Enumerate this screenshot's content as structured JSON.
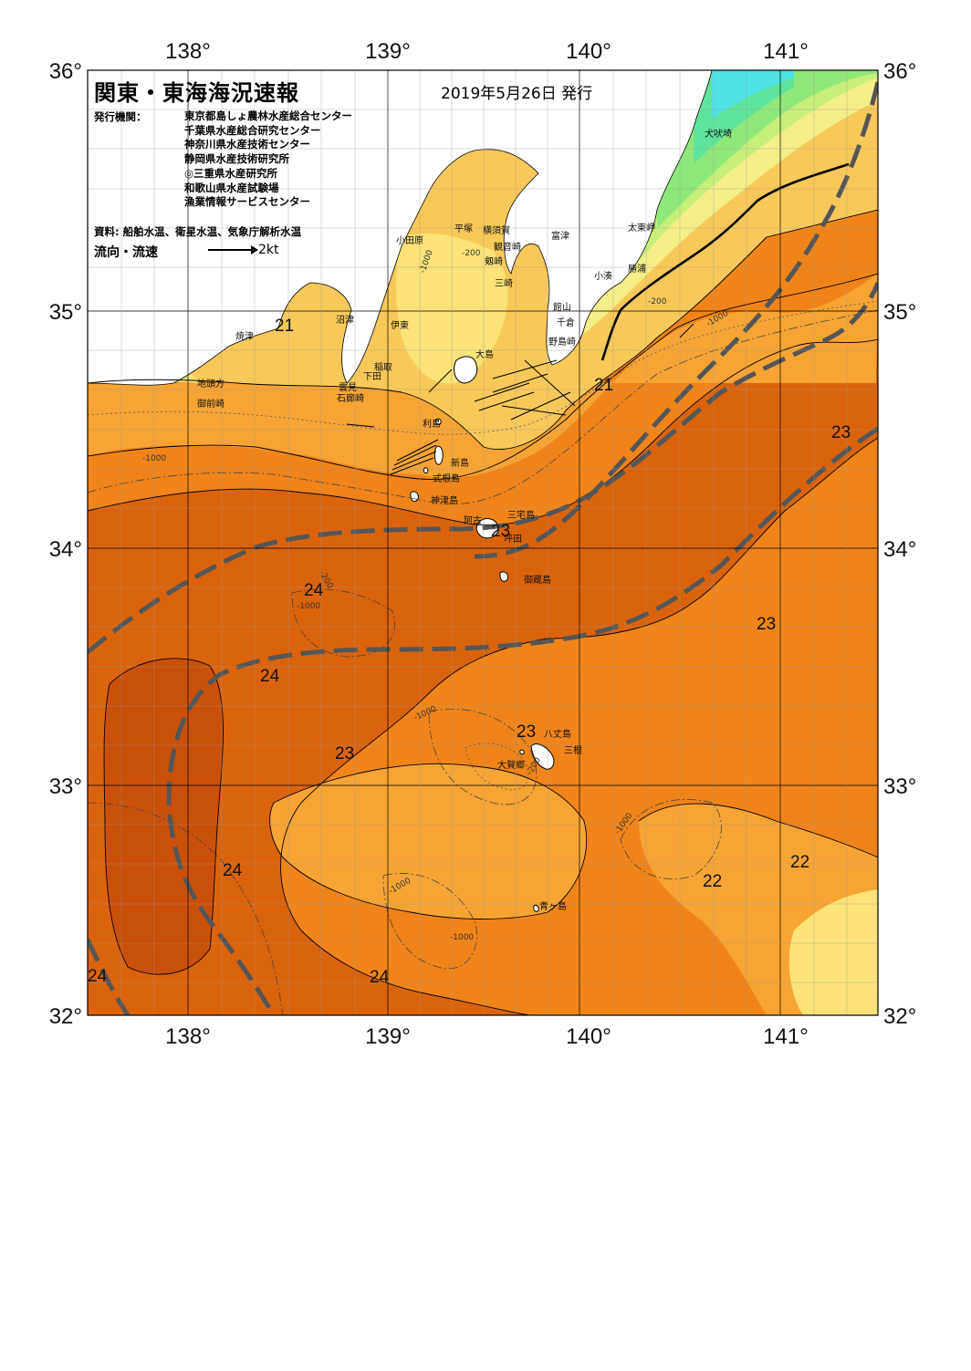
{
  "header": {
    "title": "関東・東海海況速報",
    "date": "2019年5月26日 発行",
    "org_label": "発行機関：",
    "organizations": [
      "東京都島しょ農林水産総合センター",
      "千葉県水産総合研究センター",
      "神奈川県水産技術センター",
      "静岡県水産技術研究所",
      "◎三重県水産研究所",
      "和歌山県水産試験場",
      "漁業情報サービスセンター"
    ],
    "source": "資料: 船舶水温、衛星水温、気象庁解析水温",
    "flow_label": "流向・流速",
    "flow_scale": "2kt"
  },
  "axes": {
    "lon_top": [
      "138°",
      "139°",
      "140°",
      "141°"
    ],
    "lon_bottom": [
      "138°",
      "139°",
      "140°",
      "141°"
    ],
    "lat_left": [
      "36°",
      "35°",
      "34°",
      "33°",
      "32°"
    ],
    "lat_right": [
      "36°",
      "35°",
      "34°",
      "33°",
      "32°"
    ]
  },
  "place_names": [
    "犬吠埼",
    "太東岬",
    "勝浦",
    "小湊",
    "館山",
    "千倉",
    "野島崎",
    "富津",
    "観音崎",
    "剱崎",
    "三崎",
    "横須賀",
    "平塚",
    "小田原",
    "沼津",
    "焼津",
    "伊東",
    "大島",
    "稲取",
    "下田",
    "雲見",
    "石廊崎",
    "地頭方",
    "御前崎",
    "利島",
    "新島",
    "式根島",
    "神津島",
    "三宅島",
    "阿古",
    "坪田",
    "御蔵島",
    "八丈島",
    "三根",
    "大賀郷",
    "青ヶ島"
  ],
  "temperature_labels": [
    "21",
    "21",
    "23",
    "23",
    "24",
    "23",
    "24",
    "23",
    "23",
    "24",
    "22",
    "22",
    "24",
    "24"
  ],
  "depth_labels": [
    "-200",
    "-1000",
    "-200",
    "-1000",
    "-200",
    "-1000",
    "-1000",
    "-200",
    "-1000",
    "-1000",
    "-1000",
    "-1000"
  ],
  "colors": {
    "temp_24plus": "#c9500a",
    "temp_24": "#d9640d",
    "temp_23": "#ef8418",
    "temp_22": "#f6a434",
    "temp_21": "#f9c85a",
    "temp_20": "#fce278",
    "temp_19": "#f3ee88",
    "temp_18": "#c8ee7a",
    "temp_17": "#8fe87a",
    "temp_16": "#5fe39a",
    "temp_15": "#4ee2e2",
    "land": "#ffffff",
    "kuroshio_axis": "#555555"
  }
}
